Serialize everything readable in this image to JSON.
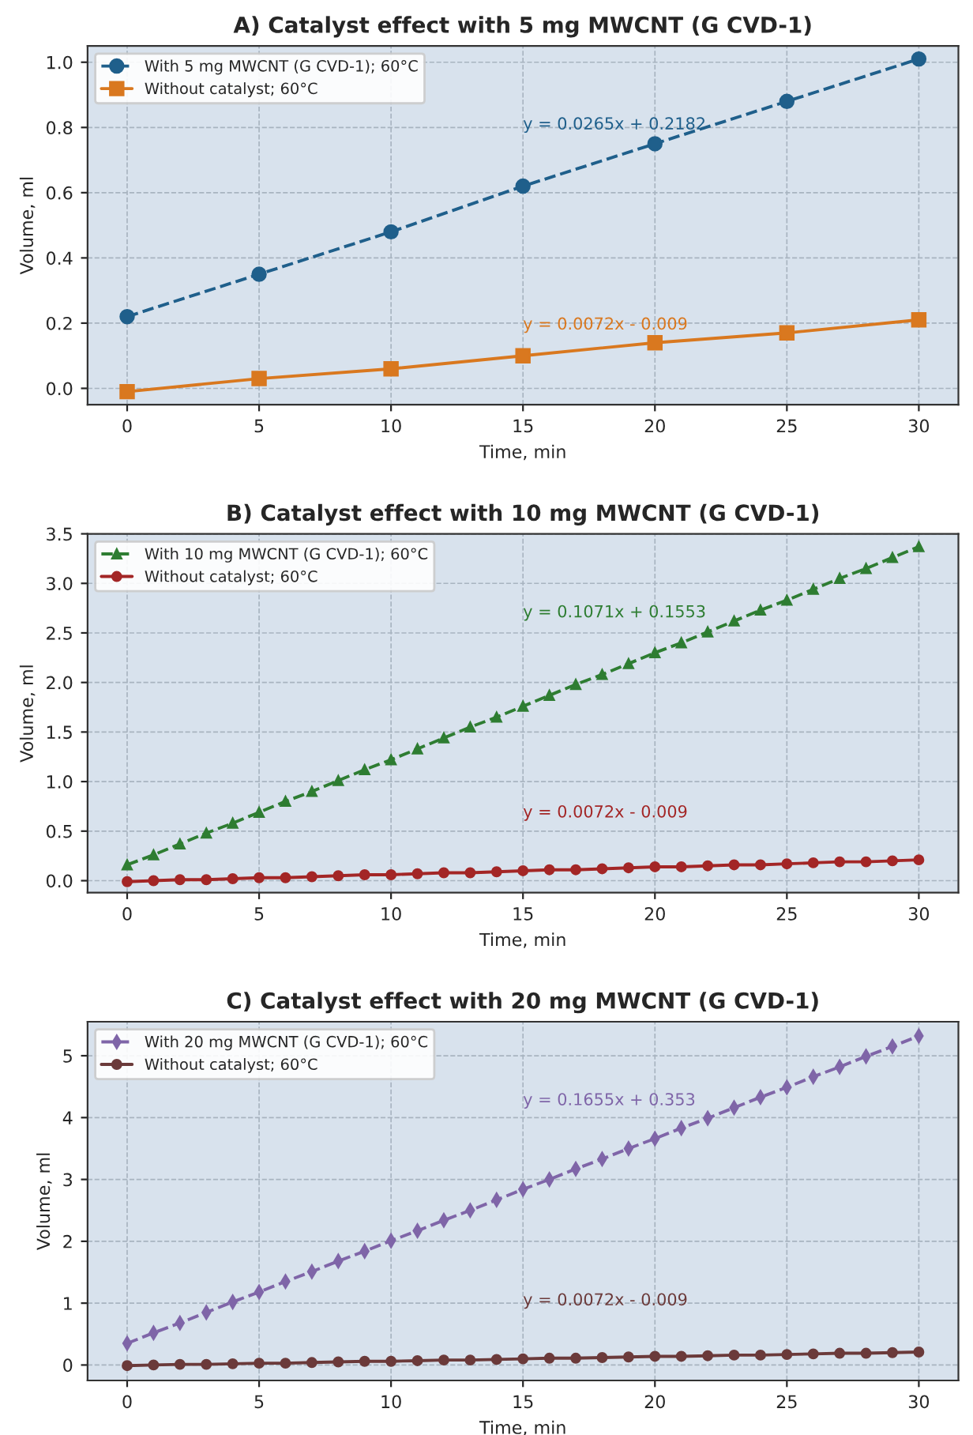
{
  "chart_data": [
    {
      "type": "line",
      "title": "A) Catalyst effect with 5 mg MWCNT (G CVD-1)",
      "xlabel": "Time, min",
      "ylabel": "Volume, ml",
      "x": [
        0,
        5,
        10,
        15,
        20,
        25,
        30
      ],
      "xlim": [
        -1.5,
        31.5
      ],
      "ylim": [
        -0.05,
        1.05
      ],
      "xticks": [
        0,
        5,
        10,
        15,
        20,
        25,
        30
      ],
      "yticks": [
        {
          "value": 0,
          "label": "0.0"
        },
        0.2,
        0.4,
        0.6,
        0.8,
        {
          "value": 1,
          "label": "1.0"
        }
      ],
      "grid": true,
      "legend": "top left",
      "series": [
        {
          "name": "With 5 mg MWCNT (G CVD-1); 60°C",
          "color": "#1f5f8b",
          "marker": "circle",
          "line_style": "dashed",
          "values": [
            0.22,
            0.35,
            0.48,
            0.62,
            0.75,
            0.88,
            1.01
          ]
        },
        {
          "name": "Without catalyst; 60°C",
          "color": "#d9781f",
          "marker": "square",
          "line_style": "solid",
          "values": [
            -0.01,
            0.03,
            0.06,
            0.1,
            0.14,
            0.17,
            0.21
          ]
        }
      ],
      "annotations": [
        "y = 0.0265x + 0.2182",
        "y = 0.0072x - 0.009"
      ]
    },
    {
      "type": "line",
      "title": "B) Catalyst effect with 10 mg MWCNT (G CVD-1)",
      "xlabel": "Time, min",
      "ylabel": "Volume, ml",
      "x": [
        0,
        1,
        2,
        3,
        4,
        5,
        6,
        7,
        8,
        9,
        10,
        11,
        12,
        13,
        14,
        15,
        16,
        17,
        18,
        19,
        20,
        21,
        22,
        23,
        24,
        25,
        26,
        27,
        28,
        29,
        30
      ],
      "xlim": [
        -1.5,
        31.5
      ],
      "ylim": [
        -0.12,
        3.5
      ],
      "xticks": [
        0,
        5,
        10,
        15,
        20,
        25,
        30
      ],
      "yticks": [
        {
          "value": 0,
          "label": "0.0"
        },
        0.5,
        {
          "value": 1,
          "label": "1.0"
        },
        1.5,
        {
          "value": 2,
          "label": "2.0"
        },
        2.5,
        {
          "value": 3,
          "label": "3.0"
        },
        3.5
      ],
      "grid": true,
      "legend": "top left",
      "series": [
        {
          "name": "With 10 mg MWCNT (G CVD-1); 60°C",
          "color": "#2e7d32",
          "marker": "triangle",
          "line_style": "dashed",
          "values": [
            0.16,
            0.26,
            0.37,
            0.48,
            0.58,
            0.69,
            0.8,
            0.9,
            1.01,
            1.12,
            1.22,
            1.33,
            1.44,
            1.55,
            1.65,
            1.76,
            1.87,
            1.98,
            2.08,
            2.19,
            2.3,
            2.4,
            2.51,
            2.62,
            2.73,
            2.83,
            2.94,
            3.05,
            3.15,
            3.26,
            3.37
          ]
        },
        {
          "name": "Without catalyst; 60°C",
          "color": "#a32626",
          "marker": "circle",
          "line_style": "solid",
          "values": [
            -0.01,
            0.0,
            0.01,
            0.01,
            0.02,
            0.03,
            0.03,
            0.04,
            0.05,
            0.06,
            0.06,
            0.07,
            0.08,
            0.08,
            0.09,
            0.1,
            0.11,
            0.11,
            0.12,
            0.13,
            0.14,
            0.14,
            0.15,
            0.16,
            0.16,
            0.17,
            0.18,
            0.19,
            0.19,
            0.2,
            0.21
          ]
        }
      ],
      "annotations": [
        "y = 0.1071x + 0.1553",
        "y = 0.0072x - 0.009"
      ]
    },
    {
      "type": "line",
      "title": "C) Catalyst effect with 20 mg MWCNT (G CVD-1)",
      "xlabel": "Time, min",
      "ylabel": "Volume, ml",
      "x": [
        0,
        1,
        2,
        3,
        4,
        5,
        6,
        7,
        8,
        9,
        10,
        11,
        12,
        13,
        14,
        15,
        16,
        17,
        18,
        19,
        20,
        21,
        22,
        23,
        24,
        25,
        26,
        27,
        28,
        29,
        30
      ],
      "xlim": [
        -1.5,
        31.5
      ],
      "ylim": [
        -0.25,
        5.55
      ],
      "xticks": [
        0,
        5,
        10,
        15,
        20,
        25,
        30
      ],
      "yticks": [
        0,
        1,
        2,
        3,
        4,
        5
      ],
      "grid": true,
      "legend": "top left",
      "series": [
        {
          "name": "With 20 mg MWCNT (G CVD-1); 60°C",
          "color": "#7f65a8",
          "marker": "diamond",
          "line_style": "dashed",
          "values": [
            0.35,
            0.52,
            0.68,
            0.85,
            1.02,
            1.18,
            1.35,
            1.51,
            1.68,
            1.84,
            2.01,
            2.17,
            2.34,
            2.5,
            2.67,
            2.84,
            3.0,
            3.17,
            3.33,
            3.5,
            3.66,
            3.83,
            3.99,
            4.16,
            4.33,
            4.49,
            4.66,
            4.82,
            4.99,
            5.15,
            5.32
          ]
        },
        {
          "name": "Without catalyst; 60°C",
          "color": "#6b3a3a",
          "marker": "circle",
          "line_style": "solid",
          "values": [
            -0.01,
            0.0,
            0.01,
            0.01,
            0.02,
            0.03,
            0.03,
            0.04,
            0.05,
            0.06,
            0.06,
            0.07,
            0.08,
            0.08,
            0.09,
            0.1,
            0.11,
            0.11,
            0.12,
            0.13,
            0.14,
            0.14,
            0.15,
            0.16,
            0.16,
            0.17,
            0.18,
            0.19,
            0.19,
            0.2,
            0.21
          ]
        }
      ],
      "annotations": [
        "y = 0.1655x + 0.353",
        "y = 0.0072x - 0.009"
      ]
    }
  ]
}
